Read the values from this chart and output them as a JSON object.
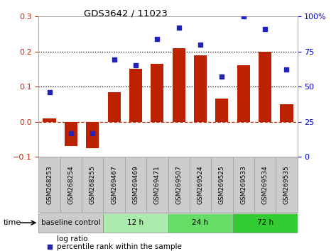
{
  "title": "GDS3642 / 11023",
  "categories": [
    "GSM268253",
    "GSM268254",
    "GSM268255",
    "GSM269467",
    "GSM269469",
    "GSM269471",
    "GSM269507",
    "GSM269524",
    "GSM269525",
    "GSM269533",
    "GSM269534",
    "GSM269535"
  ],
  "log_ratio": [
    0.01,
    -0.07,
    -0.075,
    0.085,
    0.15,
    0.165,
    0.21,
    0.19,
    0.065,
    0.16,
    0.2,
    0.05
  ],
  "percentile_rank_pct": [
    46,
    17,
    17,
    69,
    65,
    84,
    92,
    80,
    57,
    100,
    91,
    62
  ],
  "bar_color": "#bb2200",
  "dot_color": "#2222bb",
  "ylim_left": [
    -0.1,
    0.3
  ],
  "ylim_right": [
    0,
    100
  ],
  "yticks_left": [
    -0.1,
    0.0,
    0.1,
    0.2,
    0.3
  ],
  "yticks_right": [
    0,
    25,
    50,
    75,
    100
  ],
  "ytick_labels_right": [
    "0",
    "25",
    "50",
    "75",
    "100%"
  ],
  "dotted_lines": [
    0.1,
    0.2
  ],
  "dashed_zero": 0.0,
  "groups": [
    {
      "label": "baseline control",
      "start": 0,
      "end": 2,
      "color": "#cccccc"
    },
    {
      "label": "12 h",
      "start": 3,
      "end": 5,
      "color": "#aaeaaa"
    },
    {
      "label": "24 h",
      "start": 6,
      "end": 8,
      "color": "#66dd66"
    },
    {
      "label": "72 h",
      "start": 9,
      "end": 11,
      "color": "#33cc33"
    }
  ],
  "time_label": "time",
  "legend_bar_label": "log ratio",
  "legend_dot_label": "percentile rank within the sample",
  "background_color": "#ffffff",
  "plot_bg_color": "#ffffff",
  "tick_color_left": "#cc2200",
  "tick_color_right": "#0000cc",
  "xtick_bg_color": "#cccccc",
  "xtick_border_color": "#999999"
}
